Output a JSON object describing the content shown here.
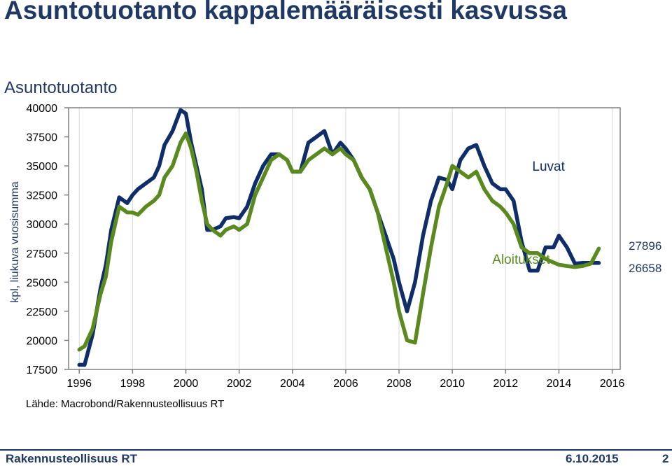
{
  "slide": {
    "title": "Asuntotuotanto kappalemääräisesti kasvussa",
    "source": "Lähde: Macrobond/Rakennusteollisuus RT",
    "footer_left": "Rakennusteollisuus RT",
    "footer_date": "6.10.2015",
    "page_number": "2"
  },
  "colors": {
    "luvat": "#0f2d69",
    "aloitukset": "#5a8a1e",
    "title": "#1f3864"
  },
  "chart_data": {
    "type": "line",
    "title": "Asuntotuotanto",
    "xlabel": "",
    "ylabel": "kpl, liukuva vuosisumma",
    "xlim": [
      1995.6,
      2016.3
    ],
    "ylim": [
      17500,
      40000
    ],
    "yticks": [
      17500,
      20000,
      22500,
      25000,
      27500,
      30000,
      32500,
      35000,
      37500,
      40000
    ],
    "xticks": [
      1996,
      1998,
      2000,
      2002,
      2004,
      2006,
      2008,
      2010,
      2012,
      2014,
      2016
    ],
    "grid": "vertical",
    "annotations": [
      {
        "text": "Luvat",
        "series": "Luvat",
        "x": 2013.0,
        "y": 35000
      },
      {
        "text": "Aloitukset",
        "series": "Aloitukset",
        "x": 2011.5,
        "y": 27000
      }
    ],
    "end_values": [
      "27896",
      "26658"
    ],
    "series": [
      {
        "name": "Luvat",
        "color": "#0f2d69",
        "x": [
          1996.0,
          1996.2,
          1996.5,
          1996.8,
          1997.0,
          1997.2,
          1997.5,
          1997.8,
          1998.0,
          1998.2,
          1998.5,
          1998.8,
          1999.0,
          1999.2,
          1999.5,
          1999.8,
          2000.0,
          2000.2,
          2000.4,
          2000.6,
          2000.8,
          2001.0,
          2001.3,
          2001.5,
          2001.8,
          2002.0,
          2002.3,
          2002.6,
          2002.9,
          2003.2,
          2003.5,
          2003.8,
          2004.0,
          2004.3,
          2004.6,
          2004.9,
          2005.2,
          2005.5,
          2005.8,
          2006.0,
          2006.3,
          2006.6,
          2006.9,
          2007.2,
          2007.5,
          2007.8,
          2008.0,
          2008.3,
          2008.6,
          2008.9,
          2009.2,
          2009.5,
          2009.8,
          2010.0,
          2010.3,
          2010.6,
          2010.9,
          2011.2,
          2011.5,
          2011.8,
          2012.0,
          2012.3,
          2012.6,
          2012.9,
          2013.2,
          2013.5,
          2013.8,
          2014.0,
          2014.3,
          2014.6,
          2014.9,
          2015.2,
          2015.5
        ],
        "values": [
          17900,
          17900,
          20500,
          24500,
          26500,
          29500,
          32300,
          31800,
          32500,
          33000,
          33500,
          34000,
          35000,
          36800,
          38000,
          39800,
          39500,
          37000,
          35000,
          33000,
          29500,
          29500,
          29800,
          30500,
          30600,
          30500,
          31500,
          33500,
          35000,
          36000,
          36000,
          35500,
          34500,
          34500,
          37000,
          37500,
          38000,
          36000,
          37000,
          36500,
          35500,
          34000,
          33000,
          31000,
          29000,
          27000,
          25000,
          22500,
          25000,
          29000,
          32000,
          34000,
          33800,
          33000,
          35500,
          36500,
          36800,
          35000,
          33500,
          33000,
          33000,
          32000,
          28500,
          26000,
          26000,
          28000,
          28000,
          29000,
          28000,
          26600,
          26658,
          26658,
          26658
        ]
      },
      {
        "name": "Aloitukset",
        "color": "#5a8a1e",
        "x": [
          1996.0,
          1996.2,
          1996.5,
          1996.8,
          1997.0,
          1997.2,
          1997.5,
          1997.8,
          1998.0,
          1998.2,
          1998.5,
          1998.8,
          1999.0,
          1999.2,
          1999.5,
          1999.8,
          2000.0,
          2000.2,
          2000.4,
          2000.6,
          2000.8,
          2001.0,
          2001.3,
          2001.5,
          2001.8,
          2002.0,
          2002.3,
          2002.6,
          2002.9,
          2003.2,
          2003.5,
          2003.8,
          2004.0,
          2004.3,
          2004.6,
          2004.9,
          2005.2,
          2005.5,
          2005.8,
          2006.0,
          2006.3,
          2006.6,
          2006.9,
          2007.2,
          2007.5,
          2007.8,
          2008.0,
          2008.3,
          2008.6,
          2008.9,
          2009.2,
          2009.5,
          2009.8,
          2010.0,
          2010.3,
          2010.6,
          2010.9,
          2011.2,
          2011.5,
          2011.8,
          2012.0,
          2012.3,
          2012.6,
          2012.9,
          2013.2,
          2013.5,
          2013.8,
          2014.0,
          2014.3,
          2014.6,
          2014.9,
          2015.2,
          2015.5
        ],
        "values": [
          19200,
          19500,
          21000,
          24000,
          25500,
          28500,
          31500,
          31000,
          31000,
          30800,
          31500,
          32000,
          32500,
          34000,
          35000,
          37000,
          37800,
          36500,
          34500,
          32000,
          30000,
          29500,
          29000,
          29500,
          29800,
          29500,
          30000,
          32500,
          34000,
          35500,
          36000,
          35500,
          34500,
          34500,
          35500,
          36000,
          36500,
          36000,
          36500,
          36000,
          35500,
          34000,
          33000,
          31000,
          28000,
          25000,
          22500,
          20000,
          19800,
          24000,
          28000,
          31500,
          33500,
          35000,
          34500,
          34000,
          34500,
          33000,
          32000,
          31500,
          31000,
          30000,
          28000,
          27500,
          27500,
          27000,
          26700,
          26500,
          26400,
          26300,
          26400,
          26600,
          27896
        ]
      }
    ]
  }
}
